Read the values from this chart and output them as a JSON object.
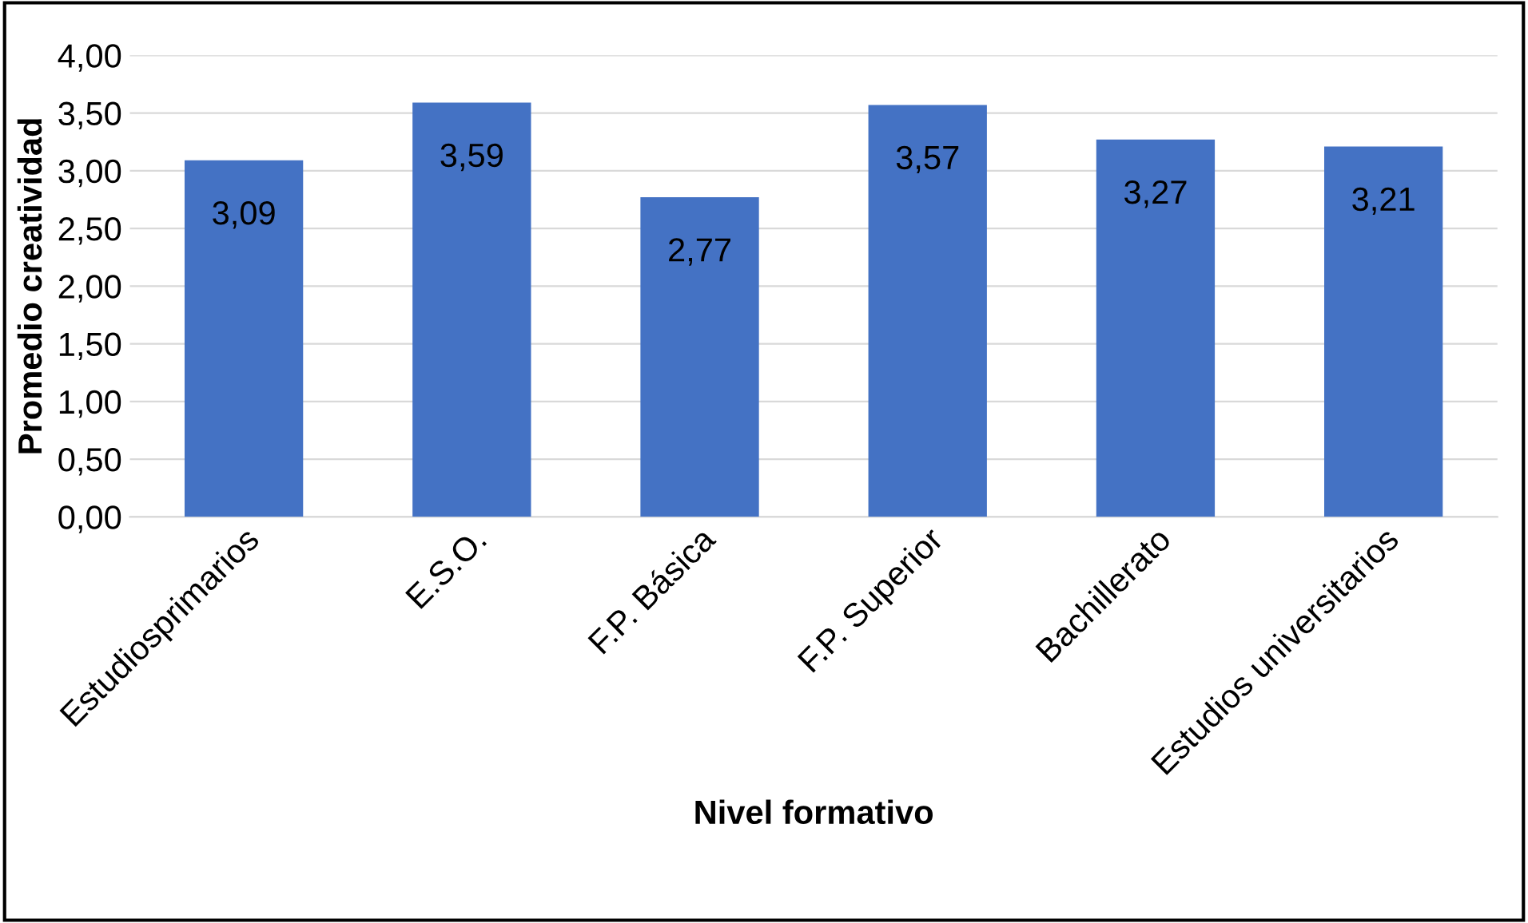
{
  "chart_data": {
    "type": "bar",
    "xlabel": "Nivel formativo",
    "ylabel": "Promedio creatividad",
    "categories": [
      "Estudiosprimarios",
      "E.S.O.",
      "F.P. Básica",
      "F.P. Superior",
      "Bachillerato",
      "Estudios universitarios"
    ],
    "values": [
      3.09,
      3.59,
      2.77,
      3.57,
      3.27,
      3.21
    ],
    "value_labels": [
      "3,09",
      "3,59",
      "2,77",
      "3,57",
      "3,27",
      "3,21"
    ],
    "color": "#4472c4",
    "ylim": [
      0,
      4
    ],
    "yticks": [
      {
        "value": 0,
        "label": "0,00"
      },
      {
        "value": 0.5,
        "label": "0,50"
      },
      {
        "value": 1,
        "label": "1,00"
      },
      {
        "value": 1.5,
        "label": "1,50"
      },
      {
        "value": 2,
        "label": "2,00"
      },
      {
        "value": 2.5,
        "label": "2,50"
      },
      {
        "value": 3,
        "label": "3,00"
      },
      {
        "value": 3.5,
        "label": "3,50"
      },
      {
        "value": 4,
        "label": "4,00"
      }
    ],
    "grid": "y",
    "legend": false
  }
}
